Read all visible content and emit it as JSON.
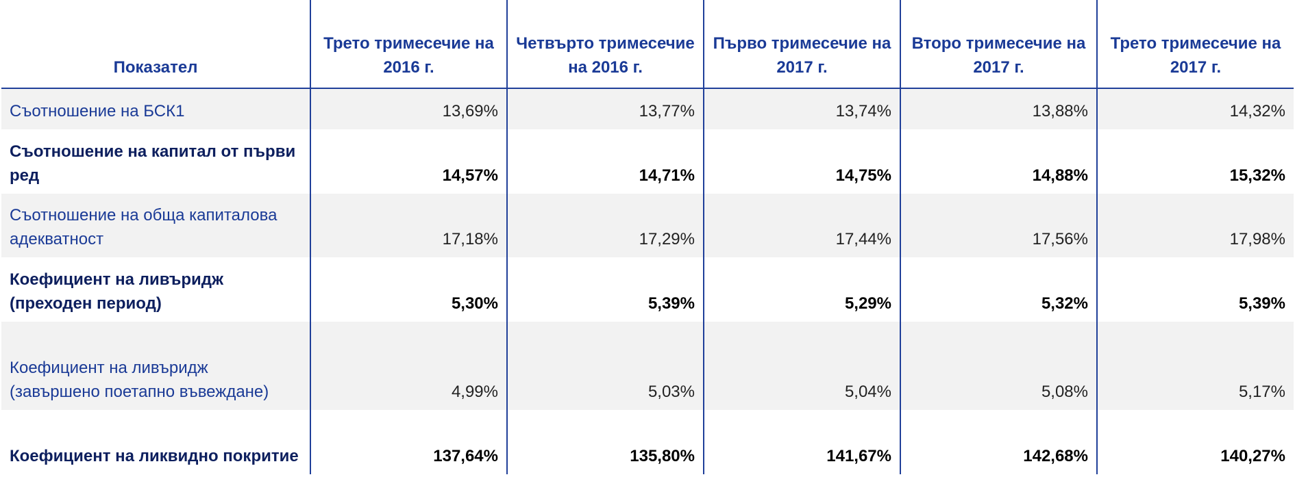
{
  "table": {
    "header": [
      "Показател",
      "Трето тримесечие на 2016 г.",
      "Четвърто тримесечие на 2016 г.",
      "Първо тримесечие на 2017 г.",
      "Второ тримесечие на 2017 г.",
      "Трето тримесечие на 2017 г."
    ],
    "rows": [
      [
        "Съотношение на БСК1",
        "13,69%",
        "13,77%",
        "13,74%",
        "13,88%",
        "14,32%"
      ],
      [
        "Съотношение на капитал от първи ред",
        "14,57%",
        "14,71%",
        "14,75%",
        "14,88%",
        "15,32%"
      ],
      [
        "Съотношение на обща капиталова адекватност",
        "17,18%",
        "17,29%",
        "17,44%",
        "17,56%",
        "17,98%"
      ],
      [
        "Коефициент на ливъридж (преходен период)",
        "5,30%",
        "5,39%",
        "5,29%",
        "5,32%",
        "5,39%"
      ],
      [
        "Коефициент на ливъридж (завършено поетапно въвеждане)",
        "4,99%",
        "5,03%",
        "5,04%",
        "5,08%",
        "5,17%"
      ],
      [
        "Коефициент на ликвидно покритие",
        "137,64%",
        "135,80%",
        "141,67%",
        "142,68%",
        "140,27%"
      ]
    ]
  }
}
